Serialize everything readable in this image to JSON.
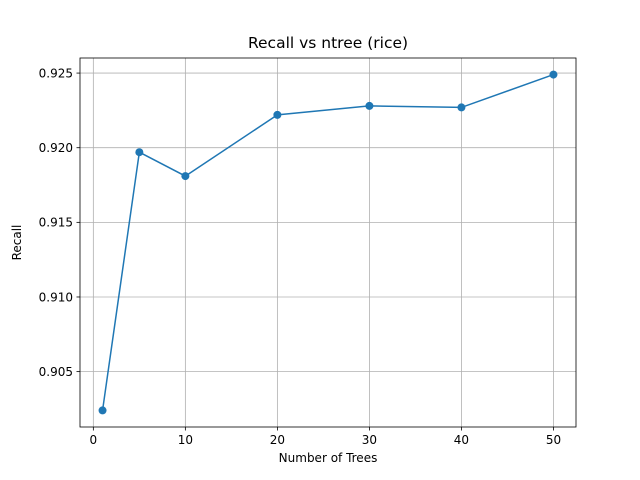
{
  "chart_data": {
    "type": "line",
    "title": "Recall vs ntree (rice)",
    "xlabel": "Number of Trees",
    "ylabel": "Recall",
    "x": [
      1,
      5,
      10,
      20,
      30,
      40,
      50
    ],
    "series": [
      {
        "values": [
          0.9024,
          0.9197,
          0.9181,
          0.9222,
          0.9228,
          0.9227,
          0.9249
        ],
        "color": "#1f77b4",
        "marker": "circle"
      }
    ],
    "xticks": [
      0,
      10,
      20,
      30,
      40,
      50
    ],
    "xtick_labels": [
      "0",
      "10",
      "20",
      "30",
      "40",
      "50"
    ],
    "yticks": [
      0.905,
      0.91,
      0.915,
      0.92,
      0.925
    ],
    "ytick_labels": [
      "0.905",
      "0.910",
      "0.915",
      "0.920",
      "0.925"
    ],
    "xlim": [
      -1.45,
      52.45
    ],
    "ylim": [
      0.90129,
      0.92601
    ],
    "grid": true,
    "legend": false
  }
}
